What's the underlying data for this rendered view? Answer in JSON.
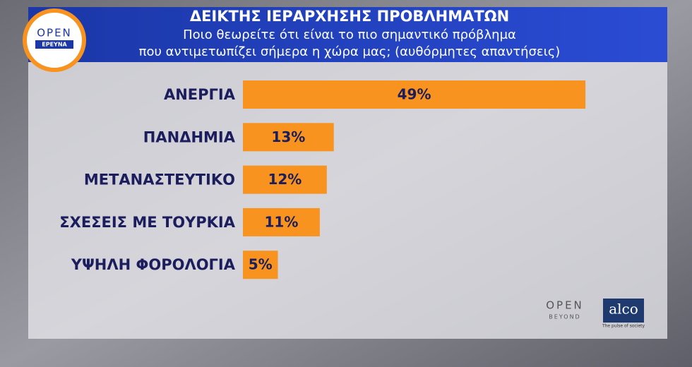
{
  "chart_data": {
    "type": "hbar",
    "title": "ΔΕΙΚΤΗΣ ΙΕΡΑΡΧΗΣΗΣ ΠΡΟΒΛΗΜΑΤΩΝ",
    "subtitle": [
      "Ποιο θεωρείτε ότι είναι το πιο σημαντικό πρόβλημα",
      "που αντιμετωπίζει σήμερα η χώρα μας; (αυθόρμητες απαντήσεις)"
    ],
    "categories": [
      "ΑΝΕΡΓΙΑ",
      "ΠΑΝΔΗΜΙΑ",
      "ΜΕΤΑΝΑΣΤΕΥΤΙΚΟ",
      "ΣΧΕΣΕΙΣ ΜΕ ΤΟΥΡΚΙΑ",
      "ΥΨΗΛΗ ΦΟΡΟΛΟΓΙΑ"
    ],
    "values": [
      49,
      13,
      12,
      11,
      5
    ],
    "value_labels": [
      "49%",
      "13%",
      "12%",
      "11%",
      "5%"
    ],
    "color": "#f7931e"
  },
  "logos": {
    "open_top": "OPEN",
    "open_sub": "ΕΡΕΥΝΑ",
    "beyond_top": "OPEN",
    "beyond_sub": "BEYOND",
    "alco": "alco",
    "alco_tagline": "The pulse of society"
  }
}
